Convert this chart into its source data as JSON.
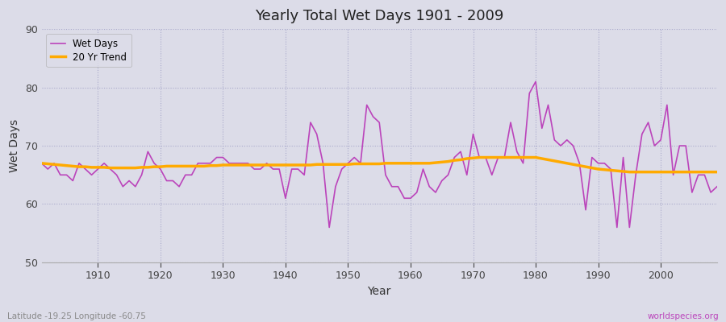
{
  "title": "Yearly Total Wet Days 1901 - 2009",
  "xlabel": "Year",
  "ylabel": "Wet Days",
  "subtitle_left": "Latitude -19.25 Longitude -60.75",
  "subtitle_right": "worldspecies.org",
  "ylim": [
    50,
    90
  ],
  "yticks": [
    50,
    60,
    70,
    80,
    90
  ],
  "xticks": [
    1910,
    1920,
    1930,
    1940,
    1950,
    1960,
    1970,
    1980,
    1990,
    2000
  ],
  "start_year": 1901,
  "end_year": 2009,
  "wet_days_color": "#bb44bb",
  "trend_color": "#ffaa00",
  "bg_color": "#dcdce8",
  "plot_bg_color": "#dcdce8",
  "wet_days": [
    67,
    66,
    67,
    65,
    65,
    64,
    67,
    66,
    65,
    66,
    67,
    66,
    65,
    63,
    64,
    63,
    65,
    69,
    67,
    66,
    64,
    64,
    63,
    65,
    65,
    67,
    67,
    67,
    68,
    68,
    67,
    67,
    67,
    67,
    66,
    66,
    67,
    66,
    66,
    61,
    66,
    66,
    65,
    74,
    72,
    67,
    56,
    63,
    66,
    67,
    68,
    67,
    77,
    75,
    74,
    65,
    63,
    63,
    61,
    61,
    62,
    66,
    63,
    62,
    64,
    65,
    68,
    69,
    65,
    72,
    68,
    68,
    65,
    68,
    68,
    74,
    69,
    67,
    79,
    81,
    73,
    77,
    71,
    70,
    71,
    70,
    67,
    59,
    68,
    67,
    67,
    66,
    56,
    68,
    56,
    65,
    72,
    74,
    70,
    71,
    77,
    65,
    70,
    70,
    62,
    65,
    65,
    62,
    63
  ],
  "trend": [
    67.0,
    66.9,
    66.8,
    66.7,
    66.6,
    66.5,
    66.4,
    66.4,
    66.3,
    66.3,
    66.3,
    66.2,
    66.2,
    66.2,
    66.2,
    66.2,
    66.3,
    66.3,
    66.4,
    66.4,
    66.5,
    66.5,
    66.5,
    66.5,
    66.5,
    66.5,
    66.5,
    66.6,
    66.6,
    66.7,
    66.7,
    66.7,
    66.7,
    66.7,
    66.7,
    66.7,
    66.7,
    66.7,
    66.7,
    66.7,
    66.7,
    66.7,
    66.7,
    66.7,
    66.8,
    66.8,
    66.8,
    66.8,
    66.8,
    66.8,
    66.9,
    66.9,
    66.9,
    66.9,
    66.9,
    67.0,
    67.0,
    67.0,
    67.0,
    67.0,
    67.0,
    67.0,
    67.0,
    67.1,
    67.2,
    67.3,
    67.5,
    67.6,
    67.8,
    67.9,
    68.0,
    68.0,
    68.0,
    68.0,
    68.0,
    68.0,
    68.0,
    68.0,
    68.0,
    68.0,
    67.8,
    67.6,
    67.4,
    67.2,
    67.0,
    66.8,
    66.6,
    66.4,
    66.2,
    66.0,
    65.9,
    65.8,
    65.7,
    65.6,
    65.5,
    65.5,
    65.5,
    65.5,
    65.5,
    65.5,
    65.5,
    65.5,
    65.5,
    65.5,
    65.5,
    65.5,
    65.5,
    65.5,
    65.5
  ]
}
